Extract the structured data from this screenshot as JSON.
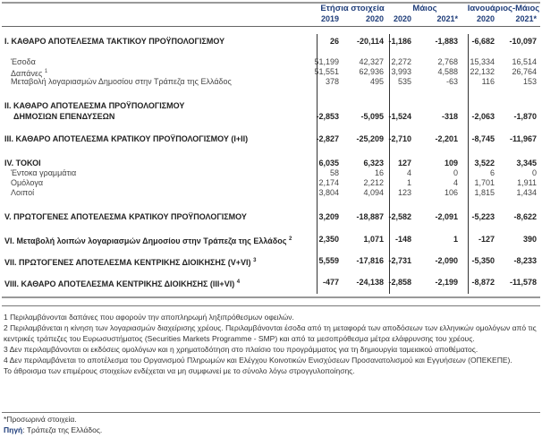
{
  "header": {
    "groups": [
      "Ετήσια στοιχεία",
      "Μάιος",
      "Ιανουάριος-Μάιος"
    ],
    "years": [
      "2019",
      "2020",
      "2020",
      "2021*",
      "2020",
      "2021*"
    ]
  },
  "rows": [
    {
      "label": "I. ΚΑΘΑΡΟ ΑΠΟΤΕΛΕΣΜΑ  ΤΑΚΤΙΚΟΥ ΠΡΟΫΠΟΛΟΓΙΣΜΟΥ",
      "sup": "",
      "style": "b",
      "values": [
        "26",
        "-20,114",
        "-1,186",
        "-1,883",
        "-6,682",
        "-10,097"
      ]
    },
    {
      "label": "Έσοδα",
      "sup": "",
      "style": "s",
      "values": [
        "51,199",
        "42,327",
        "2,272",
        "2,768",
        "15,334",
        "16,514"
      ]
    },
    {
      "label": "Δαπάνες",
      "sup": "1",
      "style": "s",
      "values": [
        "51,551",
        "62,936",
        "3,993",
        "4,588",
        "22,132",
        "26,764"
      ]
    },
    {
      "label": "Μεταβολή λογαριασμών Δημοσίου στην Τράπεζα της Ελλάδος",
      "sup": "",
      "style": "s",
      "values": [
        "378",
        "495",
        "535",
        "-63",
        "116",
        "153"
      ]
    },
    {
      "label": "II. ΚΑΘΑΡΟ ΑΠΟΤΕΛΕΣΜΑ ΠΡΟΫΠΟΛΟΓΙΣΜΟΥ",
      "label2": "ΔΗΜΟΣΙΩΝ ΕΠΕΝΔΥΣΕΩΝ",
      "sup": "",
      "style": "b",
      "values": [
        "-2,853",
        "-5,095",
        "-1,524",
        "-318",
        "-2,063",
        "-1,870"
      ]
    },
    {
      "label": "III. ΚΑΘΑΡΟ ΑΠΟΤΕΛΕΣΜΑ ΚΡΑΤΙΚΟΥ ΠΡΟΫΠΟΛΟΓΙΣΜΟΥ (I+II)",
      "sup": "",
      "style": "b",
      "values": [
        "-2,827",
        "-25,209",
        "-2,710",
        "-2,201",
        "-8,745",
        "-11,967"
      ]
    },
    {
      "label": "IV. ΤΟΚΟΙ",
      "sup": "",
      "style": "b",
      "values": [
        "6,035",
        "6,323",
        "127",
        "109",
        "3,522",
        "3,345"
      ]
    },
    {
      "label": "Έντοκα γραμμάτια",
      "sup": "",
      "style": "s",
      "values": [
        "58",
        "16",
        "4",
        "0",
        "6",
        "0"
      ]
    },
    {
      "label": "Ομόλογα",
      "sup": "",
      "style": "s",
      "values": [
        "2,174",
        "2,212",
        "1",
        "4",
        "1,701",
        "1,911"
      ]
    },
    {
      "label": "Λοιποί",
      "sup": "",
      "style": "s",
      "values": [
        "3,804",
        "4,094",
        "123",
        "106",
        "1,815",
        "1,434"
      ]
    },
    {
      "label": "V. ΠΡΩΤΟΓΕΝΕΣ ΑΠΟΤΕΛΕΣΜΑ  ΚΡΑΤΙΚΟΥ ΠΡΟΫΠΟΛΟΓΙΣΜΟΥ",
      "sup": "",
      "style": "b",
      "values": [
        "3,209",
        "-18,887",
        "-2,582",
        "-2,091",
        "-5,223",
        "-8,622"
      ]
    },
    {
      "label": "VI. Μεταβολή λοιπών λογαριασμών Δημοσίου στην Τράπεζα της Ελλάδος",
      "sup": "2",
      "style": "b",
      "values": [
        "2,350",
        "1,071",
        "-148",
        "1",
        "-127",
        "390"
      ]
    },
    {
      "label": "VII. ΠΡΩΤΟΓΕΝΕΣ ΑΠΟΤΕΛΕΣΜΑ ΚΕΝΤΡΙΚΗΣ ΔΙΟΙΚΗΣΗΣ (V+VI)",
      "sup": "3",
      "style": "b",
      "values": [
        "5,559",
        "-17,816",
        "-2,731",
        "-2,090",
        "-5,350",
        "-8,233"
      ]
    },
    {
      "label": "VIII. ΚΑΘΑΡΟ ΑΠΟΤΕΛΕΣΜΑ ΚΕΝΤΡΙΚΗΣ ΔΙΟΙΚΗΣΗΣ (III+VI)",
      "sup": "4",
      "style": "b",
      "values": [
        "-477",
        "-24,138",
        "-2,858",
        "-2,199",
        "-8,872",
        "-11,578"
      ]
    }
  ],
  "footnotes": [
    "1 Περιλαμβάνονται δαπάνες που αφορούν την αποπληρωμή ληξιπρόθεσμων οφειλών.",
    "2 Περιλαμβάνεται η κίνηση των λογαριασμών διαχείρισης χρέους. Περιλαμβάνονται έσοδα από τη μεταφορά των αποδόσεων των ελληνικών ομολόγων από τις κεντρικές τράπεζες του Ευρωσυστήματος (Securities Markets Programme - SMP) και από τα μεσοπρόθεσμα μέτρα ελάφρυνσης του χρέους.",
    "3 Δεν περιλαμβάνονται οι εκδόσεις ομολόγων και η χρηματοδότηση στο πλαίσιο του προγράμματος για τη δημιουργία ταμειακού αποθέματος.",
    "4 Δεν περιλαμβάνεται το αποτέλεσμα του Οργανισμού Πληρωμών και Ελέγχου Κοινοτικών Ενισχύσεων Προσανατολισμού και Εγγυήσεων (ΟΠΕΚΕΠΕ).",
    "Το άθροισμα των επιμέρους στοιχείων ενδέχεται να μη συμφωνεί με το σύνολο λόγω στρογγυλοποίησης."
  ],
  "provisional": "*Προσωρινά στοιχεία.",
  "source_label": "Πηγή",
  "source_text": ": Τράπεζα της Ελλάδος."
}
